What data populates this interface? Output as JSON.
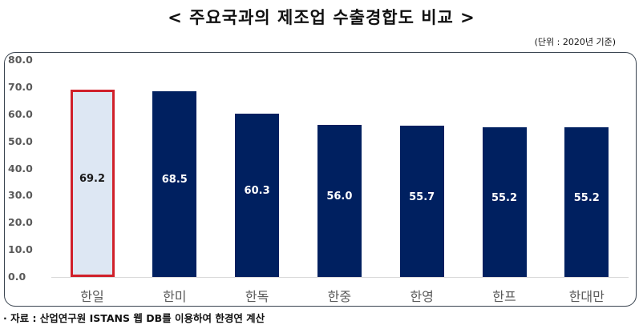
{
  "header": {
    "title": "< 주요국과의 제조업 수출경합도 비교 >",
    "unit_note": "(단위 : 2020년 기준)"
  },
  "footer": {
    "source": "· 자료 : 산업연구원 ISTANS 웹 DB를 이용하여 한경연 계산"
  },
  "colors": {
    "bar": "#002060",
    "highlight_fill": "#dde7f3",
    "highlight_border": "#d0202a",
    "axis_text": "#595959"
  },
  "chart_data": {
    "type": "bar",
    "title": "< 주요국과의 제조업 수출경합도 비교 >",
    "subtitle": "(단위 : 2020년 기준)",
    "xlabel": "",
    "ylabel": "",
    "categories": [
      "한일",
      "한미",
      "한독",
      "한중",
      "한영",
      "한프",
      "한대만"
    ],
    "values": [
      69.2,
      68.5,
      60.3,
      56.0,
      55.7,
      55.2,
      55.2
    ],
    "value_labels": [
      "69.2",
      "68.5",
      "60.3",
      "56.0",
      "55.7",
      "55.2",
      "55.2"
    ],
    "highlighted_index": 0,
    "ylim": [
      0,
      80
    ],
    "yticks": [
      "80.0",
      "70.0",
      "60.0",
      "50.0",
      "40.0",
      "30.0",
      "20.0",
      "10.0",
      "0.0"
    ],
    "grid": false,
    "legend": null,
    "annotation": "· 자료 : 산업연구원 ISTANS 웹 DB를 이용하여 한경연 계산"
  }
}
